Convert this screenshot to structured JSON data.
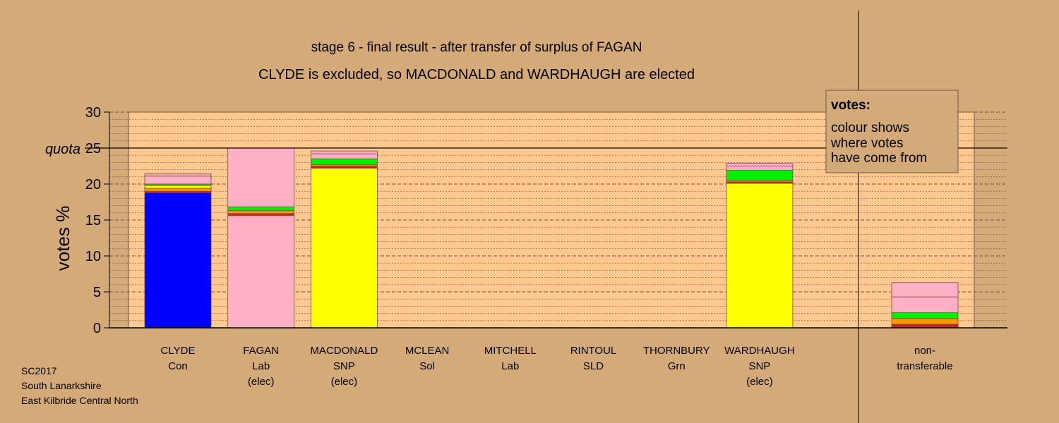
{
  "chart_data": {
    "type": "bar",
    "stacked": true,
    "title": "stage 6 - final result - after transfer of surplus of FAGAN",
    "subtitle": "CLYDE is excluded, so MACDONALD and WARDHAUGH are elected",
    "ylabel": "votes %",
    "ylim": [
      0,
      30
    ],
    "yticks": [
      "0",
      "5",
      "10",
      "15",
      "20",
      "25",
      "30"
    ],
    "quota": 25,
    "quota_label": "quota",
    "grid": true,
    "legend": {
      "position": "top-right",
      "title": "votes:",
      "lines": [
        "colour shows",
        "where votes",
        "have come from"
      ]
    },
    "footer": [
      "SC2017",
      "South Lanarkshire",
      "East Kilbride Central North"
    ],
    "candidates": [
      {
        "name": "CLYDE",
        "party": "Con",
        "status": "",
        "segments": [
          {
            "value": 18.8,
            "color": "#0000ff"
          },
          {
            "value": 0.2,
            "color": "#cc2222"
          },
          {
            "value": 0.4,
            "color": "#ff9900"
          },
          {
            "value": 0.4,
            "color": "#ffff00"
          },
          {
            "value": 0.2,
            "color": "#00ee00"
          },
          {
            "value": 1.1,
            "color": "#ffb0c4"
          },
          {
            "value": 0.3,
            "color": "#ffb0c4"
          }
        ]
      },
      {
        "name": "FAGAN",
        "party": "Lab",
        "status": "(elec)",
        "segments": [
          {
            "value": 15.6,
            "color": "#ffb0c4"
          },
          {
            "value": 0.3,
            "color": "#cc2222"
          },
          {
            "value": 0.4,
            "color": "#ff9900"
          },
          {
            "value": 0.5,
            "color": "#00ee00"
          },
          {
            "value": 8.2,
            "color": "#ffb0c4"
          }
        ]
      },
      {
        "name": "MACDONALD",
        "party": "SNP",
        "status": "(elec)",
        "segments": [
          {
            "value": 22.2,
            "color": "#ffff00"
          },
          {
            "value": 0.3,
            "color": "#cc2222"
          },
          {
            "value": 0.2,
            "color": "#ff9900"
          },
          {
            "value": 0.8,
            "color": "#00ee00"
          },
          {
            "value": 0.7,
            "color": "#ffb0c4"
          },
          {
            "value": 0.4,
            "color": "#ffb0c4"
          }
        ]
      },
      {
        "name": "MCLEAN",
        "party": "Sol",
        "status": "",
        "segments": []
      },
      {
        "name": "MITCHELL",
        "party": "Lab",
        "status": "",
        "segments": []
      },
      {
        "name": "RINTOUL",
        "party": "SLD",
        "status": "",
        "segments": []
      },
      {
        "name": "THORNBURY",
        "party": "Grn",
        "status": "",
        "segments": []
      },
      {
        "name": "WARDHAUGH",
        "party": "SNP",
        "status": "(elec)",
        "segments": [
          {
            "value": 20.1,
            "color": "#ffff00"
          },
          {
            "value": 0.2,
            "color": "#cc2222"
          },
          {
            "value": 0.2,
            "color": "#ff9900"
          },
          {
            "value": 1.4,
            "color": "#00ee00"
          },
          {
            "value": 0.6,
            "color": "#ffb0c4"
          },
          {
            "value": 0.4,
            "color": "#ffb0c4"
          }
        ]
      }
    ],
    "non_transferable": {
      "label": [
        "non-",
        "transferable"
      ],
      "segments": [
        {
          "value": 0.5,
          "color": "#cc2222"
        },
        {
          "value": 0.8,
          "color": "#ff9900"
        },
        {
          "value": 0.8,
          "color": "#00ee00"
        },
        {
          "value": 2.2,
          "color": "#ffb0c4"
        },
        {
          "value": 2.0,
          "color": "#ffb0c4"
        }
      ]
    },
    "colors": {
      "background": "#d4aa78",
      "plot_area": "#ffc890",
      "axis": "#000000",
      "grid": "#6a5a48",
      "bar_outline": "#7a4a3a",
      "legend_box": "#d4aa78"
    }
  }
}
